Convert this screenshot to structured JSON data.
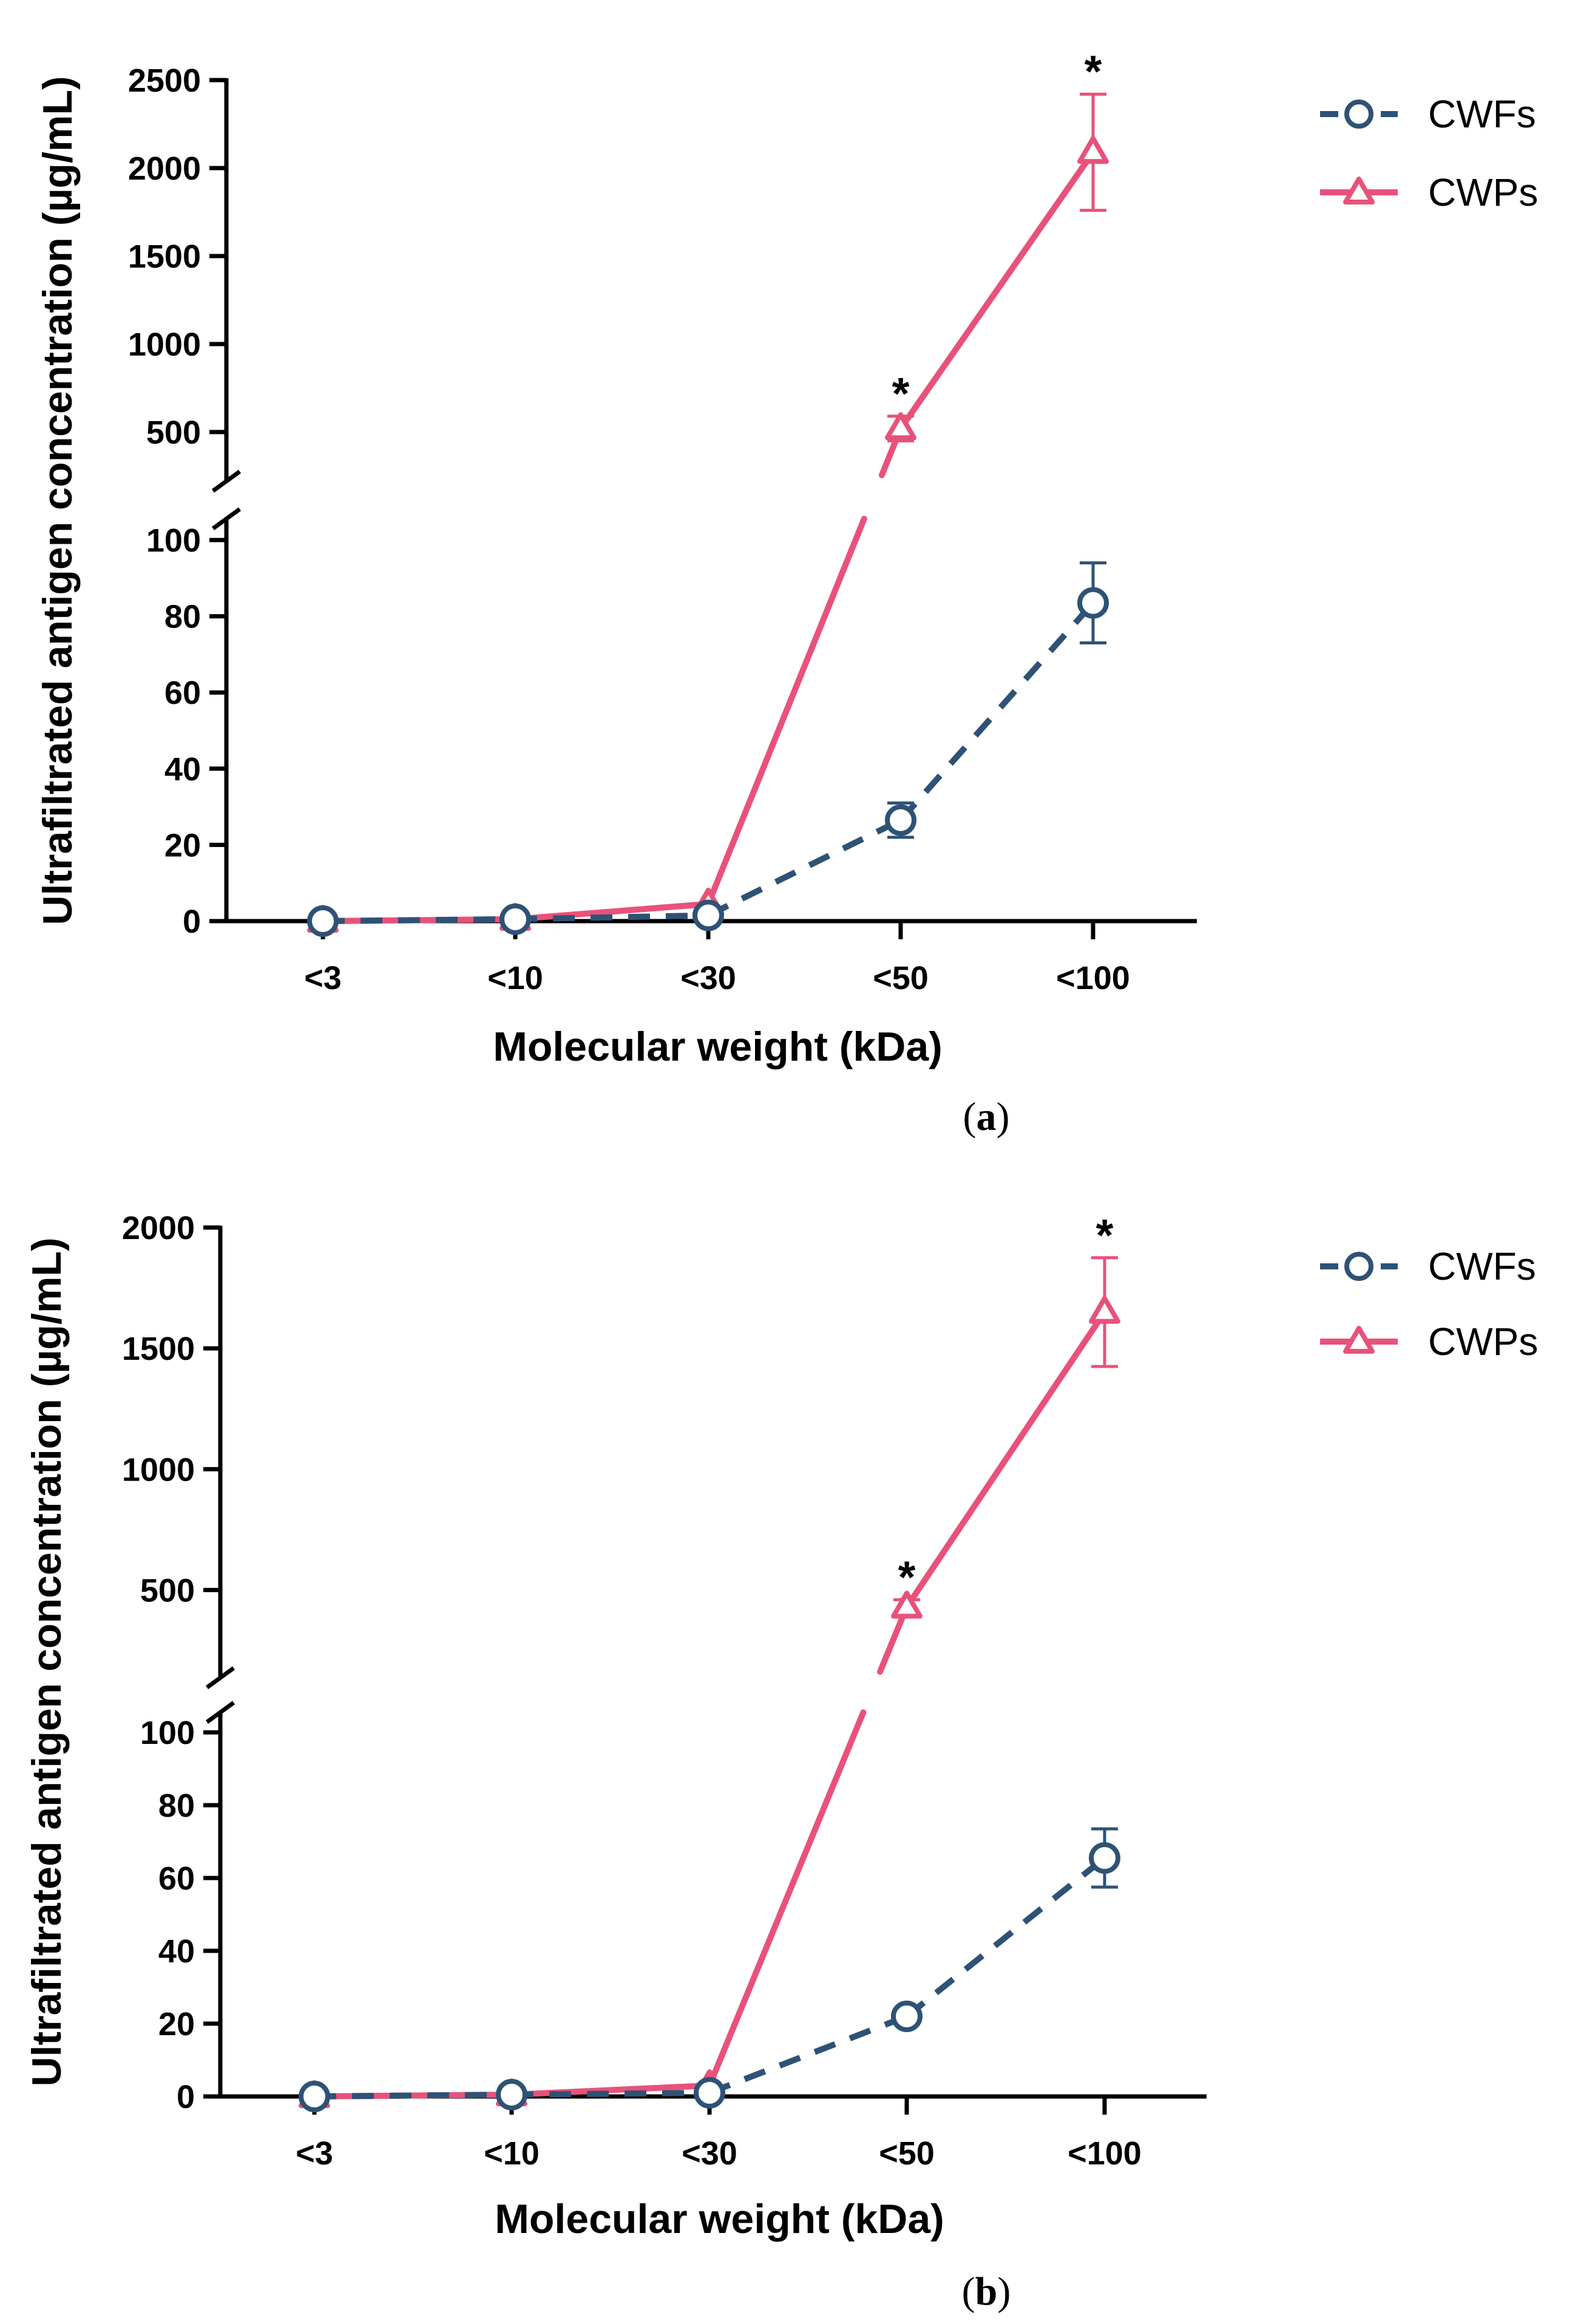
{
  "chart_data": [
    {
      "type": "line",
      "panel_label": "(a)",
      "panel_letter": "a",
      "categories": [
        "<3",
        "<10",
        "<30",
        "<50",
        "<100"
      ],
      "xlabel": "Molecular weight (kDa)",
      "ylabel": "Ultrafiltrated antigen concentration (µg/mL)",
      "y_broken_axis": true,
      "ylim_lower": [
        0,
        100
      ],
      "yticks_lower": [
        0,
        20,
        40,
        60,
        80,
        100
      ],
      "ylim_upper": [
        300,
        2500
      ],
      "yticks_upper": [
        500,
        1000,
        1500,
        2000,
        2500
      ],
      "legend_position": "top-right",
      "series": [
        {
          "name": "CWFs",
          "color": "#2E5276",
          "marker": "circle",
          "linestyle": "dashed",
          "values": [
            0,
            0.5,
            1.5,
            26.5,
            83.5
          ],
          "errors": [
            0,
            0,
            0,
            4.5,
            10.5
          ],
          "significance": [
            "",
            "",
            "",
            "",
            ""
          ]
        },
        {
          "name": "CWPs",
          "color": "#E8527A",
          "marker": "triangle",
          "linestyle": "solid",
          "values": [
            0,
            0.5,
            4.5,
            520,
            2090
          ],
          "errors": [
            0,
            0,
            0,
            70,
            330
          ],
          "significance": [
            "",
            "",
            "",
            "*",
            "*"
          ]
        }
      ]
    },
    {
      "type": "line",
      "panel_label": "(b)",
      "panel_letter": "b",
      "categories": [
        "<3",
        "<10",
        "<30",
        "<50",
        "<100"
      ],
      "xlabel": "Molecular weight (kDa)",
      "ylabel": "Ultrafiltrated antigen concentration (µg/mL)",
      "y_broken_axis": true,
      "ylim_lower": [
        0,
        100
      ],
      "yticks_lower": [
        0,
        20,
        40,
        60,
        80,
        100
      ],
      "ylim_upper": [
        250,
        2000
      ],
      "yticks_upper": [
        500,
        1000,
        1500,
        2000
      ],
      "legend_position": "top-right",
      "series": [
        {
          "name": "CWFs",
          "color": "#2E5276",
          "marker": "circle",
          "linestyle": "dashed",
          "values": [
            0,
            0.5,
            1,
            22,
            65.5
          ],
          "errors": [
            0,
            0,
            0,
            0,
            8
          ],
          "significance": [
            "",
            "",
            "",
            "",
            ""
          ]
        },
        {
          "name": "CWPs",
          "color": "#E8527A",
          "marker": "triangle",
          "linestyle": "solid",
          "values": [
            0,
            0.5,
            3,
            430,
            1650
          ],
          "errors": [
            0,
            0,
            0,
            30,
            225
          ],
          "significance": [
            "",
            "",
            "",
            "*",
            "*"
          ]
        }
      ]
    }
  ]
}
